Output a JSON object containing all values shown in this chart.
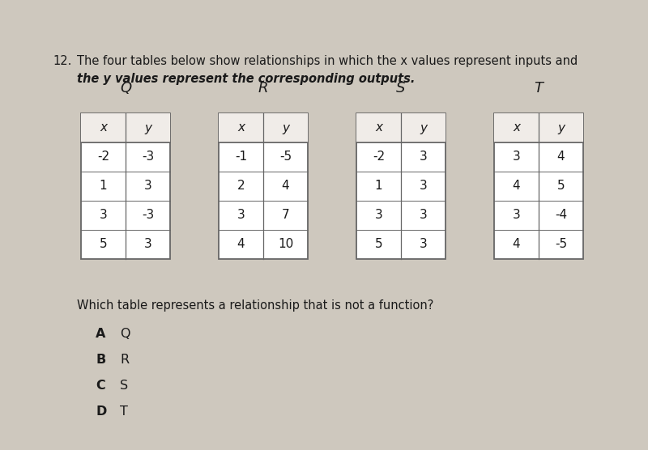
{
  "problem_number": "12.",
  "intro_text_line1": "The four tables below show relationships in which the x values represent inputs and",
  "intro_text_line2": "the y values represent the corresponding outputs.",
  "tables": [
    {
      "label": "Q",
      "headers": [
        "x",
        "y"
      ],
      "rows": [
        [
          "-2",
          "-3"
        ],
        [
          "1",
          "3"
        ],
        [
          "3",
          "-3"
        ],
        [
          "5",
          "3"
        ]
      ]
    },
    {
      "label": "R",
      "headers": [
        "x",
        "y"
      ],
      "rows": [
        [
          "-1",
          "-5"
        ],
        [
          "2",
          "4"
        ],
        [
          "3",
          "7"
        ],
        [
          "4",
          "10"
        ]
      ]
    },
    {
      "label": "S",
      "headers": [
        "x",
        "y"
      ],
      "rows": [
        [
          "-2",
          "3"
        ],
        [
          "1",
          "3"
        ],
        [
          "3",
          "3"
        ],
        [
          "5",
          "3"
        ]
      ]
    },
    {
      "label": "T",
      "headers": [
        "x",
        "y"
      ],
      "rows": [
        [
          "3",
          "4"
        ],
        [
          "4",
          "5"
        ],
        [
          "3",
          "-4"
        ],
        [
          "4",
          "-5"
        ]
      ]
    }
  ],
  "question": "Which table represents a relationship that is not a function?",
  "choices": [
    {
      "letter": "A",
      "text": "Q"
    },
    {
      "letter": "B",
      "text": "R"
    },
    {
      "letter": "C",
      "text": "S"
    },
    {
      "letter": "D",
      "text": "T"
    }
  ],
  "bg_color": "#cec8be",
  "text_color": "#1a1a1a",
  "border_color": "#666666",
  "table_face": "#ffffff",
  "header_face": "#f0ece8",
  "fig_width": 8.0,
  "fig_height": 5.56,
  "dpi": 100
}
